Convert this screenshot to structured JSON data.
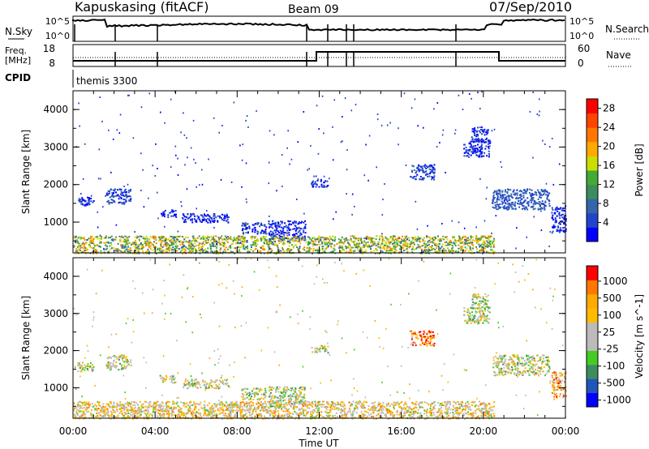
{
  "header": {
    "station": "Kapuskasing (fitACF)",
    "beam": "Beam 09",
    "date": "07/Sep/2010"
  },
  "top_panel": {
    "left_label": "N.Sky",
    "right_label": "N.Search",
    "left_ticks": [
      "10^5",
      "10^0"
    ],
    "right_ticks": [
      "10^5",
      "10^0"
    ]
  },
  "mid_panel": {
    "left_label_1": "Freq.",
    "left_label_2": "[MHz]",
    "right_label": "Nave",
    "left_ticks": [
      "18",
      "8"
    ],
    "right_ticks": [
      "60",
      "0"
    ]
  },
  "cpid": {
    "label": "CPID",
    "program": "themis 3300"
  },
  "chart_data": [
    {
      "type": "heatmap",
      "name": "power",
      "ylabel": "Slant Range [km]",
      "xlabel": "",
      "xlim": [
        0,
        24
      ],
      "ylim": [
        180,
        4500
      ],
      "yticks": [
        "1000",
        "2000",
        "3000",
        "4000"
      ],
      "colorbar_label": "Power [dB]",
      "colorbar_ticks": [
        "4",
        "8",
        "12",
        "16",
        "20",
        "24",
        "28"
      ],
      "colorbar_colors": [
        "#0000ff",
        "#2244cc",
        "#3366aa",
        "#3d8c5e",
        "#44aa33",
        "#ccdd00",
        "#ffaa00",
        "#ff7700",
        "#ff4400",
        "#ff0000"
      ],
      "patches": [
        {
          "t0": 0.2,
          "t1": 1.0,
          "r0": 1450,
          "r1": 1700,
          "level": 0.1
        },
        {
          "t0": 1.6,
          "t1": 2.8,
          "r0": 1500,
          "r1": 1900,
          "level": 0.15
        },
        {
          "t0": 4.2,
          "t1": 5.0,
          "r0": 1150,
          "r1": 1350,
          "level": 0.1
        },
        {
          "t0": 5.3,
          "t1": 7.6,
          "r0": 1000,
          "r1": 1250,
          "level": 0.1
        },
        {
          "t0": 8.2,
          "t1": 9.4,
          "r0": 700,
          "r1": 1000,
          "level": 0.12
        },
        {
          "t0": 9.5,
          "t1": 11.3,
          "r0": 500,
          "r1": 1050,
          "level": 0.1
        },
        {
          "t0": 11.6,
          "t1": 12.4,
          "r0": 1950,
          "r1": 2150,
          "level": 0.1
        },
        {
          "t0": 16.4,
          "t1": 17.6,
          "r0": 2150,
          "r1": 2550,
          "level": 0.15
        },
        {
          "t0": 19.0,
          "t1": 20.3,
          "r0": 2750,
          "r1": 3200,
          "level": 0.1
        },
        {
          "t0": 19.4,
          "t1": 20.2,
          "r0": 3150,
          "r1": 3550,
          "level": 0.1
        },
        {
          "t0": 20.4,
          "t1": 23.2,
          "r0": 1350,
          "r1": 1900,
          "level": 0.2
        },
        {
          "t0": 23.3,
          "t1": 24.0,
          "r0": 750,
          "r1": 1450,
          "level": 0.1
        },
        {
          "t0": 0.0,
          "t1": 20.5,
          "r0": 180,
          "r1": 650,
          "level": 0.5
        }
      ]
    },
    {
      "type": "heatmap",
      "name": "velocity",
      "ylabel": "Slant Range [km]",
      "xlabel": "Time UT",
      "xlim": [
        0,
        24
      ],
      "ylim": [
        180,
        4500
      ],
      "xticks": [
        "00:00",
        "04:00",
        "08:00",
        "12:00",
        "16:00",
        "20:00",
        "00:00"
      ],
      "yticks": [
        "1000",
        "2000",
        "3000",
        "4000"
      ],
      "colorbar_label": "Velocity [m s^-1]",
      "colorbar_ticks": [
        "1000",
        "500",
        "100",
        "25",
        "-25",
        "-100",
        "-500",
        "-1000"
      ],
      "colorbar_colors": [
        "#0000ff",
        "#2255bb",
        "#3d8c5e",
        "#44cc22",
        "#bbbbbb",
        "#bbbbbb",
        "#ffbb00",
        "#ffaa00",
        "#ff7700",
        "#ff0000"
      ],
      "patches": [
        {
          "t0": 0.2,
          "t1": 1.0,
          "r0": 1450,
          "r1": 1700,
          "level": 0.5
        },
        {
          "t0": 1.6,
          "t1": 2.8,
          "r0": 1500,
          "r1": 1900,
          "level": 0.5
        },
        {
          "t0": 4.2,
          "t1": 5.0,
          "r0": 1150,
          "r1": 1350,
          "level": 0.5
        },
        {
          "t0": 5.3,
          "t1": 7.6,
          "r0": 1000,
          "r1": 1250,
          "level": 0.5
        },
        {
          "t0": 8.2,
          "t1": 9.4,
          "r0": 700,
          "r1": 1000,
          "level": 0.5
        },
        {
          "t0": 9.5,
          "t1": 11.3,
          "r0": 500,
          "r1": 1050,
          "level": 0.45
        },
        {
          "t0": 11.6,
          "t1": 12.4,
          "r0": 1950,
          "r1": 2150,
          "level": 0.5
        },
        {
          "t0": 16.4,
          "t1": 17.6,
          "r0": 2150,
          "r1": 2550,
          "level": 0.82
        },
        {
          "t0": 19.0,
          "t1": 20.3,
          "r0": 2750,
          "r1": 3200,
          "level": 0.5
        },
        {
          "t0": 19.4,
          "t1": 20.2,
          "r0": 3150,
          "r1": 3550,
          "level": 0.5
        },
        {
          "t0": 20.4,
          "t1": 23.2,
          "r0": 1350,
          "r1": 1900,
          "level": 0.5
        },
        {
          "t0": 23.3,
          "t1": 24.0,
          "r0": 750,
          "r1": 1450,
          "level": 0.7
        },
        {
          "t0": 0.0,
          "t1": 20.5,
          "r0": 180,
          "r1": 650,
          "level": 0.6
        }
      ]
    }
  ]
}
